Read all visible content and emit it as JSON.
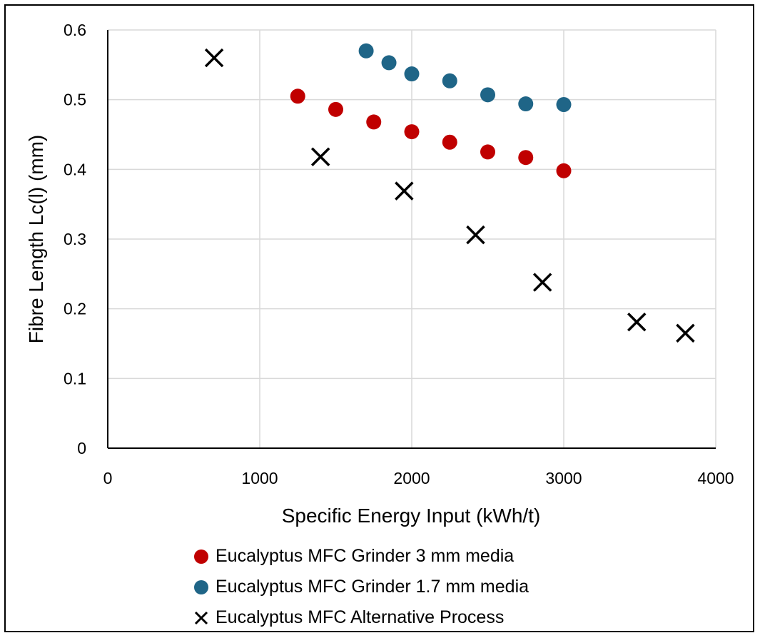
{
  "chart_data": {
    "type": "scatter",
    "title": "",
    "xlabel": "Specific Energy Input (kWh/t)",
    "ylabel": "Fibre Length Lc(l) (mm)",
    "xlim": [
      0,
      4000
    ],
    "ylim": [
      0,
      0.6
    ],
    "x_ticks": [
      0,
      1000,
      2000,
      3000,
      4000
    ],
    "y_ticks": [
      0,
      0.1,
      0.2,
      0.3,
      0.4,
      0.5,
      0.6
    ],
    "x_tick_labels": [
      "0",
      "1000",
      "2000",
      "3000",
      "4000"
    ],
    "y_tick_labels": [
      "0",
      "0.1",
      "0.2",
      "0.3",
      "0.4",
      "0.5",
      "0.6"
    ],
    "grid": true,
    "legend_position": "bottom",
    "series": [
      {
        "name": "Eucalyptus MFC Grinder 3 mm media",
        "marker": "circle",
        "color": "#c00000",
        "x": [
          1250,
          1500,
          1750,
          2000,
          2250,
          2500,
          2750,
          3000
        ],
        "y": [
          0.505,
          0.486,
          0.468,
          0.454,
          0.439,
          0.425,
          0.417,
          0.398
        ]
      },
      {
        "name": "Eucalyptus MFC Grinder 1.7 mm media",
        "marker": "circle",
        "color": "#1f6587",
        "x": [
          1700,
          1850,
          2000,
          2250,
          2500,
          2750,
          3000
        ],
        "y": [
          0.57,
          0.553,
          0.537,
          0.527,
          0.507,
          0.494,
          0.493
        ]
      },
      {
        "name": "Eucalyptus MFC Alternative Process",
        "marker": "x",
        "color": "#000000",
        "x": [
          700,
          1400,
          1950,
          2420,
          2860,
          3480,
          3800
        ],
        "y": [
          0.56,
          0.418,
          0.369,
          0.306,
          0.238,
          0.181,
          0.165
        ]
      }
    ]
  }
}
